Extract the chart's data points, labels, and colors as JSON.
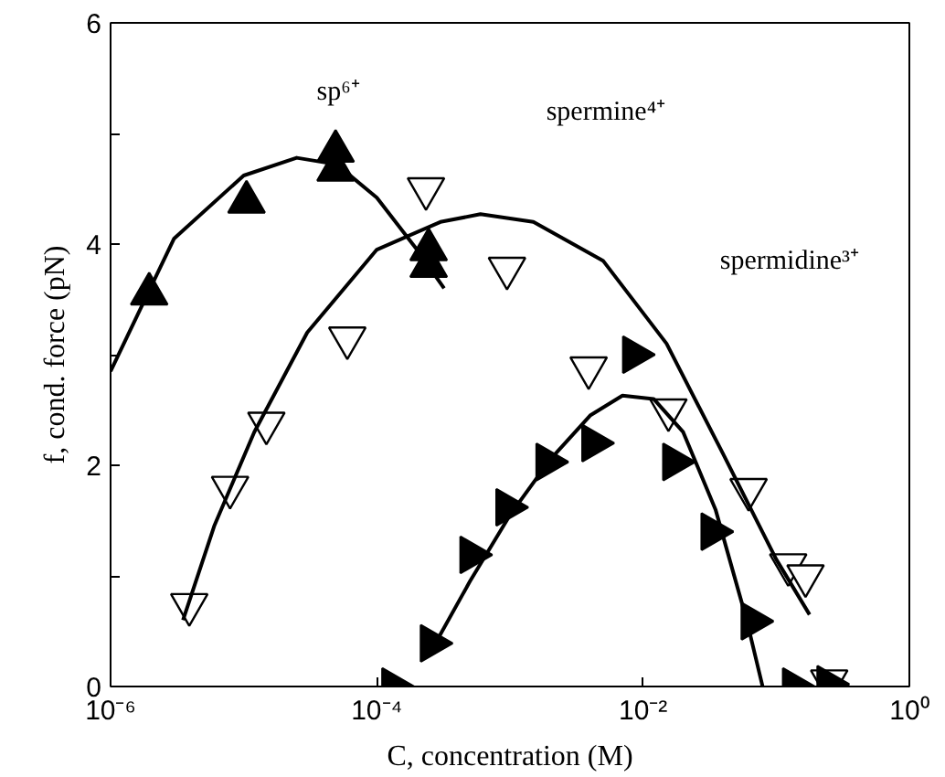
{
  "chart_data": {
    "type": "scatter",
    "xlabel": "C, concentration (M)",
    "ylabel": "f, cond. force (pN)",
    "log": "x",
    "xlim": [
      1e-06,
      1
    ],
    "ylim": [
      0,
      6
    ],
    "xticks": [
      {
        "value": 1e-06,
        "label": "10⁻⁶"
      },
      {
        "value": 0.0001,
        "label": "10⁻⁴"
      },
      {
        "value": 0.01,
        "label": "10⁻²"
      },
      {
        "value": 1,
        "label": "10⁰"
      }
    ],
    "yticks": [
      0,
      {
        "value": 1,
        "label": null
      },
      2,
      {
        "value": 3,
        "label": null
      },
      4,
      {
        "value": 5,
        "label": null
      },
      6
    ],
    "grid": false,
    "series": [
      {
        "marker": "triangle",
        "color": "#000000",
        "x": [
          1.95e-06,
          1.05e-05,
          4.9e-05,
          4.9e-05,
          0.000245,
          0.000245
        ],
        "values": [
          3.55,
          4.38,
          4.84,
          4.67,
          3.95,
          3.8
        ]
      },
      {
        "marker": "triangle_down",
        "color": "#ffffff",
        "x": [
          3.9e-06,
          7.9e-06,
          1.48e-05,
          6e-05,
          0.000234,
          0.00095,
          0.0039,
          0.0155,
          0.062,
          0.123,
          0.166,
          0.25
        ],
        "values": [
          0.74,
          1.8,
          2.38,
          3.15,
          4.5,
          3.78,
          2.88,
          2.5,
          1.78,
          1.1,
          1.0,
          0.05
        ]
      },
      {
        "marker": "triangle_right",
        "color": "#000000",
        "x": [
          0.000132,
          0.000257,
          0.00051,
          0.00095,
          0.0019,
          0.0042,
          0.0085,
          0.017,
          0.033,
          0.066,
          0.135,
          0.245
        ],
        "values": [
          0,
          0.39,
          1.19,
          1.62,
          2.03,
          2.2,
          3.0,
          2.03,
          1.4,
          0.59,
          0,
          0.02
        ]
      },
      {
        "type": "line",
        "color": "#000000",
        "x": [
          1e-06,
          3e-06,
          1e-05,
          2.5e-05,
          5e-05,
          0.0001,
          0.0002,
          0.00032
        ],
        "values": [
          2.85,
          4.05,
          4.62,
          4.78,
          4.72,
          4.42,
          3.95,
          3.6
        ]
      },
      {
        "type": "line",
        "color": "#000000",
        "x": [
          3.5e-06,
          6e-06,
          1.2e-05,
          3e-05,
          0.0001,
          0.0003,
          0.0006,
          0.0015,
          0.005,
          0.015,
          0.04,
          0.1,
          0.178
        ],
        "values": [
          0.6,
          1.45,
          2.3,
          3.2,
          3.95,
          4.2,
          4.27,
          4.2,
          3.85,
          3.1,
          2.1,
          1.15,
          0.65
        ]
      },
      {
        "type": "line",
        "color": "#000000",
        "x": [
          0.00025,
          0.0005,
          0.001,
          0.002,
          0.004,
          0.007,
          0.012,
          0.02,
          0.035,
          0.06,
          0.079
        ],
        "values": [
          0.3,
          0.95,
          1.55,
          2.05,
          2.45,
          2.63,
          2.6,
          2.3,
          1.6,
          0.6,
          0
        ]
      }
    ],
    "annotations": [
      "sp⁶⁺",
      "spermine⁴⁺",
      "spermidine³⁺"
    ]
  }
}
